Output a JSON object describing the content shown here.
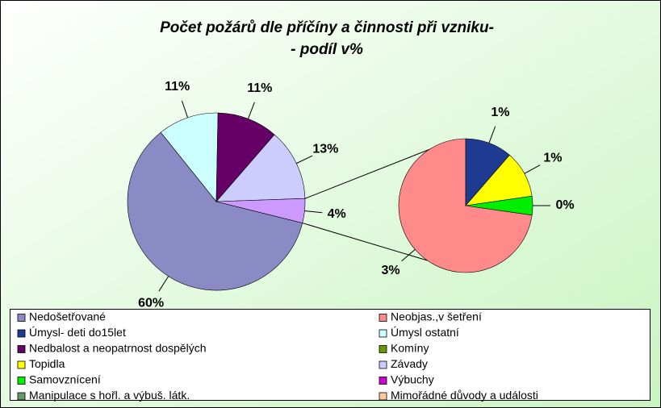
{
  "chart_data": {
    "type": "pie-of-pie",
    "title": [
      "Počet požárů dle příčíny a činnosti při vzniku-",
      "- podíl v%"
    ],
    "other_label": "4%",
    "series": [
      {
        "name": "Nedošetřované",
        "color": "#8a8ac4",
        "value": 60,
        "value_label": "60%",
        "pie": "main"
      },
      {
        "name": "Neobjas.,v šetření",
        "color": "#ff8a8a",
        "value": 3.2,
        "value_label": "3%",
        "pie": "secondary"
      },
      {
        "name": "Úmysl- deti do15let",
        "color": "#1f3a93",
        "value": 0.5,
        "value_label": "1%",
        "pie": "secondary"
      },
      {
        "name": "Úmysl ostatní",
        "color": "#ccffff",
        "value": 11,
        "value_label": "11%",
        "pie": "main"
      },
      {
        "name": "Nedbalost a neopatrnost dospělých",
        "color": "#660066",
        "value": 11,
        "value_label": "11%",
        "pie": "main"
      },
      {
        "name": "Komíny",
        "color": "#669900",
        "value": 0,
        "pie": "secondary"
      },
      {
        "name": "Topidla",
        "color": "#ffff00",
        "value": 0.5,
        "value_label": "1%",
        "pie": "secondary"
      },
      {
        "name": "Závady",
        "color": "#ccccff",
        "value": 13,
        "value_label": "13%",
        "pie": "main"
      },
      {
        "name": "Samovznícení",
        "color": "#00ee00",
        "value": 0.2,
        "value_label": "0%",
        "pie": "secondary"
      },
      {
        "name": "Výbuchy",
        "color": "#cc00cc",
        "value": 0,
        "pie": "secondary"
      },
      {
        "name": "Manipulace s hořl. a výbuš. látk.",
        "color": "#66996a",
        "value": 0,
        "pie": "secondary"
      },
      {
        "name": "Mimořádné důvody a události",
        "color": "#ffcc99",
        "value": 0,
        "pie": "secondary"
      }
    ]
  }
}
